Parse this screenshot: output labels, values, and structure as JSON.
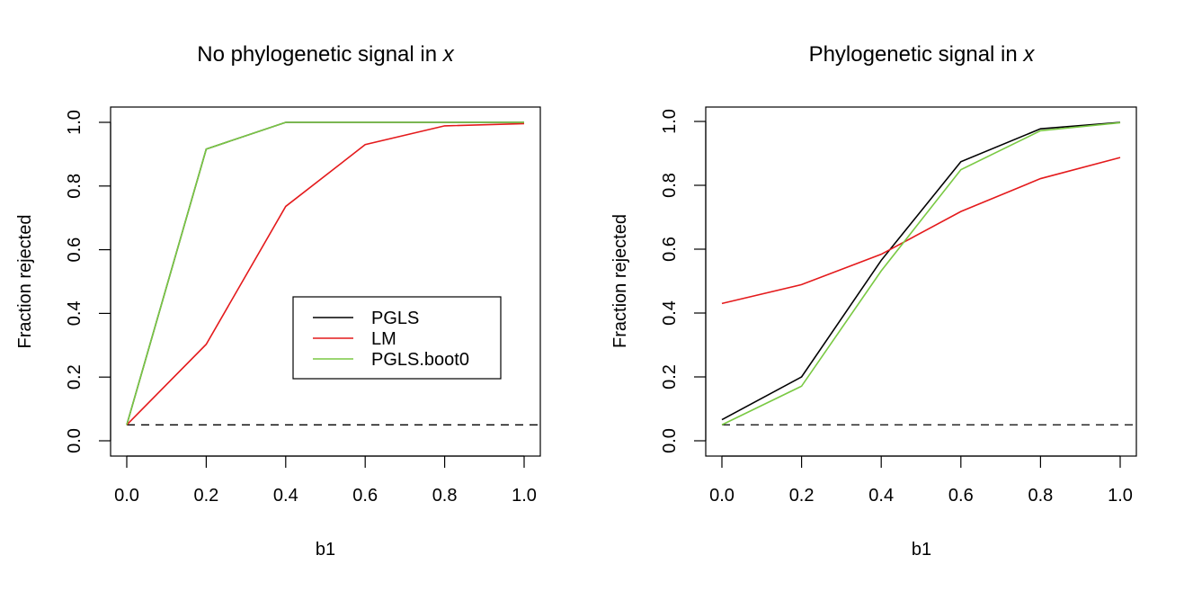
{
  "chart_data": [
    {
      "type": "line",
      "title": "No phylogenetic signal in ",
      "title_var": "x",
      "xlabel": "b1",
      "ylabel": "Fraction rejected",
      "xlim": [
        0,
        1
      ],
      "ylim": [
        0,
        1
      ],
      "x": [
        0,
        0.2,
        0.4,
        0.6,
        0.8,
        1.0
      ],
      "xticks": [
        "0.0",
        "0.2",
        "0.4",
        "0.6",
        "0.8",
        "1.0"
      ],
      "yticks": [
        "0.0",
        "0.2",
        "0.4",
        "0.6",
        "0.8",
        "1.0"
      ],
      "reference_line": {
        "y": 0.05,
        "style": "dashed",
        "color": "#000000"
      },
      "series": [
        {
          "name": "PGLS",
          "color": "#000000",
          "values": [
            0.05,
            0.916,
            1.0,
            1.0,
            1.0,
            1.0
          ]
        },
        {
          "name": "LM",
          "color": "#e41a1c",
          "values": [
            0.05,
            0.303,
            0.736,
            0.93,
            0.989,
            0.996
          ]
        },
        {
          "name": "PGLS.boot0",
          "color": "#7ac943",
          "values": [
            0.05,
            0.916,
            1.0,
            1.0,
            1.0,
            1.0
          ]
        }
      ],
      "legend": {
        "position": "bottom-right",
        "entries": [
          "PGLS",
          "LM",
          "PGLS.boot0"
        ]
      },
      "grid": false
    },
    {
      "type": "line",
      "title": "Phylogenetic signal in ",
      "title_var": "x",
      "xlabel": "b1",
      "ylabel": "Fraction rejected",
      "xlim": [
        0,
        1
      ],
      "ylim": [
        0,
        1
      ],
      "x": [
        0,
        0.2,
        0.4,
        0.6,
        0.8,
        1.0
      ],
      "xticks": [
        "0.0",
        "0.2",
        "0.4",
        "0.6",
        "0.8",
        "1.0"
      ],
      "yticks": [
        "0.0",
        "0.2",
        "0.4",
        "0.6",
        "0.8",
        "1.0"
      ],
      "reference_line": {
        "y": 0.05,
        "style": "dashed",
        "color": "#000000"
      },
      "series": [
        {
          "name": "PGLS",
          "color": "#000000",
          "values": [
            0.066,
            0.2,
            0.565,
            0.874,
            0.977,
            0.997
          ]
        },
        {
          "name": "LM",
          "color": "#e41a1c",
          "values": [
            0.43,
            0.489,
            0.584,
            0.718,
            0.821,
            0.887
          ]
        },
        {
          "name": "PGLS.boot0",
          "color": "#7ac943",
          "values": [
            0.05,
            0.171,
            0.532,
            0.849,
            0.971,
            0.996
          ]
        }
      ],
      "grid": false
    }
  ]
}
